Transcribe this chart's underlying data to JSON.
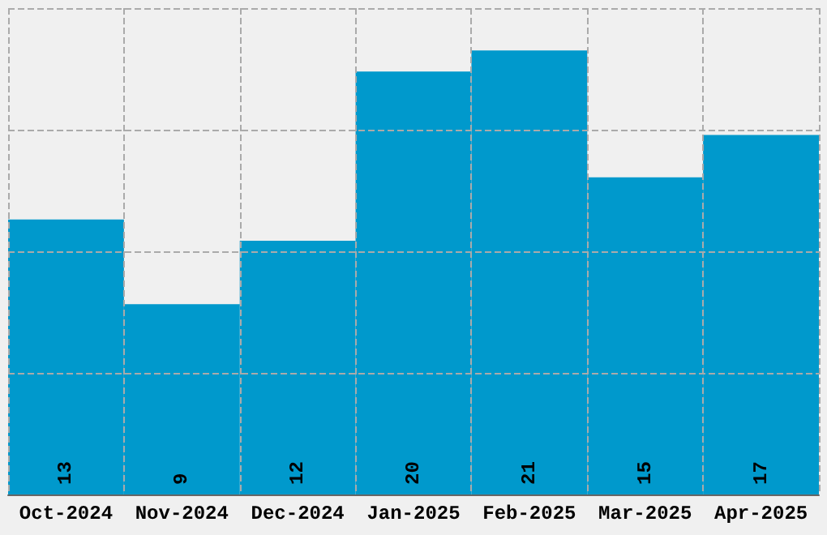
{
  "chart_data": {
    "type": "bar",
    "categories": [
      "Oct-2024",
      "Nov-2024",
      "Dec-2024",
      "Jan-2025",
      "Feb-2025",
      "Mar-2025",
      "Apr-2025"
    ],
    "values": [
      13,
      9,
      12,
      20,
      21,
      15,
      17
    ],
    "color": "#0099cc",
    "ylim": [
      0,
      23
    ],
    "tick_labels": "x",
    "grid": true,
    "data_labels": true
  }
}
